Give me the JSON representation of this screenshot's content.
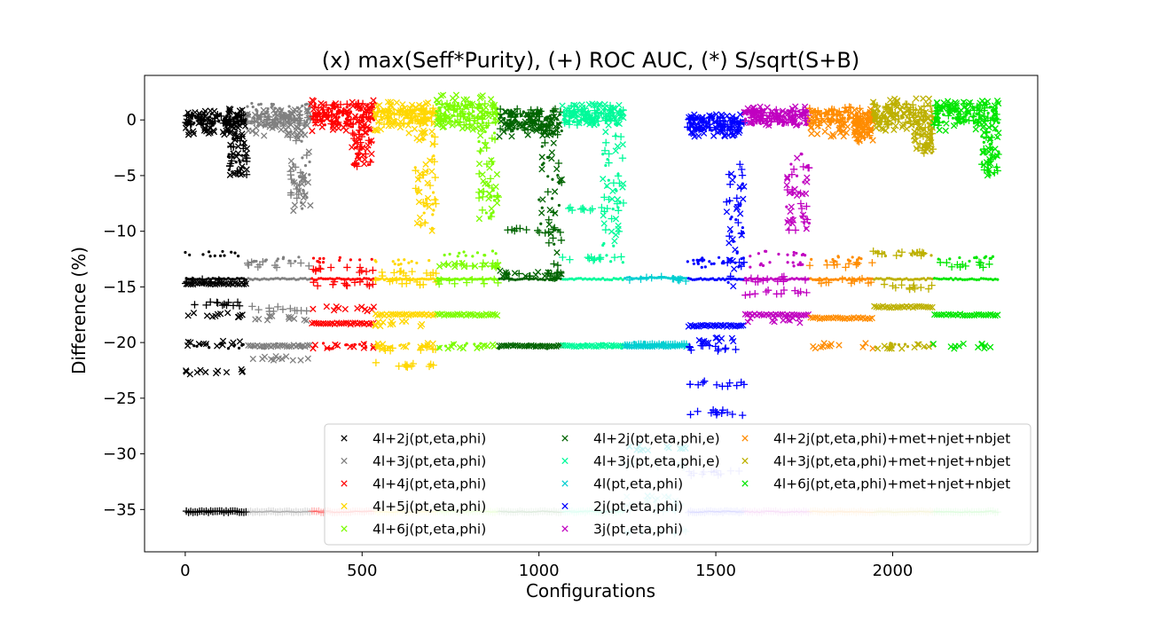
{
  "chart_data": {
    "type": "scatter",
    "title": "(x) max(Seff*Purity), (+) ROC AUC, (*) S/sqrt(S+B)",
    "xlabel": "Configurations",
    "ylabel": "Difference (%)",
    "xlim": [
      -115,
      2410
    ],
    "ylim": [
      -38.8,
      4.0
    ],
    "xticks": [
      0,
      500,
      1000,
      1500,
      2000
    ],
    "yticks": [
      0,
      -5,
      -10,
      -15,
      -20,
      -25,
      -30,
      -35
    ],
    "grid": false,
    "legend_placement": "lower-right",
    "markers": {
      "x": "max(Seff*Purity)",
      "+": "ROC AUC",
      "*": "S/sqrt(S+B)"
    },
    "series": [
      {
        "name": "4l+2j(pt,eta,phi)",
        "color": "#000000",
        "x_range": [
          0,
          175
        ],
        "cross_main": [
          -1.5,
          1.0
        ],
        "plus_main": [
          -0.5,
          0.5
        ],
        "dot_main": [
          -0.5,
          0.6
        ],
        "tail": {
          "x_range": [
            120,
            175
          ],
          "range": [
            -5.2,
            -1.0
          ]
        },
        "cross_levels": [
          -14.7,
          -17.5,
          -20.1,
          -22.6
        ],
        "plus_levels": [
          -35.2,
          -16.5,
          -14.5
        ],
        "dot_levels": [
          -14.3,
          -20.3,
          -12.0
        ]
      },
      {
        "name": "4l+3j(pt,eta,phi)",
        "color": "#808080",
        "x_range": [
          175,
          355
        ],
        "cross_main": [
          -1.5,
          1.0
        ],
        "plus_main": [
          -0.5,
          0.5
        ],
        "dot_main": [
          -0.5,
          1.5
        ],
        "tail": {
          "x_range": [
            295,
            355
          ],
          "range": [
            -8.2,
            -1.0
          ]
        },
        "cross_levels": [
          -20.3,
          -17.8,
          -21.4
        ],
        "plus_levels": [
          -35.2,
          -13.0,
          -17.0
        ],
        "dot_levels": [
          -14.3,
          -20.3,
          -12.5
        ]
      },
      {
        "name": "4l+4j(pt,eta,phi)",
        "color": "#ff0000",
        "x_range": [
          355,
          535
        ],
        "cross_main": [
          -1.0,
          1.8
        ],
        "plus_main": [
          -0.6,
          1.5
        ],
        "dot_main": [
          -0.5,
          1.5
        ],
        "tail": {
          "x_range": [
            470,
            530
          ],
          "range": [
            -4.2,
            -0.5
          ]
        },
        "cross_levels": [
          -18.3,
          -20.3,
          -17.0
        ],
        "plus_levels": [
          -35.2,
          -14.7,
          -13.5
        ],
        "dot_levels": [
          -14.3,
          -20.3,
          -12.6
        ]
      },
      {
        "name": "4l+5j(pt,eta,phi)",
        "color": "#ffd700",
        "x_range": [
          535,
          710
        ],
        "cross_main": [
          -1.2,
          1.7
        ],
        "plus_main": [
          -0.5,
          1.2
        ],
        "dot_main": [
          -0.3,
          1.0
        ],
        "tail": {
          "x_range": [
            650,
            710
          ],
          "range": [
            -10.0,
            -1.0
          ]
        },
        "cross_levels": [
          -17.5,
          -20.3,
          -18.3
        ],
        "plus_levels": [
          -35.2,
          -13.8,
          -14.6,
          -20.5,
          -22.0
        ],
        "dot_levels": [
          -14.3,
          -20.3,
          -12.8
        ]
      },
      {
        "name": "4l+6j(pt,eta,phi)",
        "color": "#7cfc00",
        "x_range": [
          710,
          885
        ],
        "cross_main": [
          -1.0,
          2.3
        ],
        "plus_main": [
          -0.5,
          1.5
        ],
        "dot_main": [
          -0.3,
          1.5
        ],
        "tail": {
          "x_range": [
            830,
            885
          ],
          "range": [
            -9.0,
            -0.5
          ]
        },
        "cross_levels": [
          -17.5,
          -20.3,
          -13.0
        ],
        "plus_levels": [
          -35.2,
          -14.5,
          -13.0
        ],
        "dot_levels": [
          -14.3,
          -20.3,
          -12.0
        ]
      },
      {
        "name": "4l+2j(pt,eta,phi,e)",
        "color": "#006400",
        "x_range": [
          885,
          1065
        ],
        "cross_main": [
          -1.5,
          0.8
        ],
        "plus_main": [
          -1.0,
          1.0
        ],
        "dot_main": [
          -1.0,
          0.8
        ],
        "tail": {
          "x_range": [
            1000,
            1065
          ],
          "range": [
            -14.2,
            -1.0
          ]
        },
        "cross_levels": [
          -20.3,
          -13.8
        ],
        "plus_levels": [
          -35.2,
          -14.0,
          -10.0
        ],
        "dot_levels": [
          -14.3,
          -20.3
        ]
      },
      {
        "name": "4l+3j(pt,eta,phi,e)",
        "color": "#00fa9a",
        "x_range": [
          1065,
          1240
        ],
        "cross_main": [
          -0.5,
          1.5
        ],
        "plus_main": [
          -0.5,
          1.3
        ],
        "dot_main": [
          -0.5,
          1.0
        ],
        "tail": {
          "x_range": [
            1180,
            1240
          ],
          "range": [
            -13.0,
            -1.0
          ]
        },
        "cross_levels": [
          -20.3
        ],
        "plus_levels": [
          -35.2,
          -12.5,
          -8.0
        ],
        "dot_levels": [
          -14.3,
          -20.3
        ]
      },
      {
        "name": "4l(pt,eta,phi)",
        "color": "#00ced1",
        "x_range": [
          1240,
          1420
        ],
        "cross_main": null,
        "plus_main": null,
        "dot_main": null,
        "tail": null,
        "cross_levels": [
          -20.3,
          -29.5,
          -34.0
        ],
        "plus_levels": [
          -20.2,
          -14.3,
          -31.0,
          -35.0,
          -37.0
        ],
        "dot_levels": [
          -14.2,
          -20.2,
          -34.5
        ]
      },
      {
        "name": "2j(pt,eta,phi)",
        "color": "#0000ff",
        "x_range": [
          1420,
          1580
        ],
        "cross_main": [
          -1.5,
          0.5
        ],
        "plus_main": [
          -1.0,
          0.3
        ],
        "dot_main": [
          -1.0,
          0.3
        ],
        "tail": {
          "x_range": [
            1530,
            1580
          ],
          "range": [
            -15.0,
            -3.5
          ]
        },
        "cross_levels": [
          -18.5,
          -19.8
        ],
        "plus_levels": [
          -35.2,
          -20.5,
          -23.7,
          -26.3,
          -31.7
        ],
        "dot_levels": [
          -14.3,
          -13.0,
          -12.5
        ]
      },
      {
        "name": "3j(pt,eta,phi)",
        "color": "#c000c0",
        "x_range": [
          1580,
          1765
        ],
        "cross_main": [
          -0.5,
          1.2
        ],
        "plus_main": [
          -0.3,
          1.0
        ],
        "dot_main": [
          -0.5,
          1.0
        ],
        "tail": {
          "x_range": [
            1700,
            1765
          ],
          "range": [
            -10.0,
            -2.5
          ]
        },
        "cross_levels": [
          -17.5,
          -18.0
        ],
        "plus_levels": [
          -35.2,
          -14.3,
          -15.5
        ],
        "dot_levels": [
          -14.3,
          -13.0,
          -12.0
        ]
      },
      {
        "name": "4l+2j(pt,eta,phi)+met+njet+nbjet",
        "color": "#ff8c00",
        "x_range": [
          1765,
          1945
        ],
        "cross_main": [
          -1.5,
          1.0
        ],
        "plus_main": [
          -0.5,
          1.2
        ],
        "dot_main": [
          -0.3,
          0.8
        ],
        "tail": {
          "x_range": [
            1890,
            1945
          ],
          "range": [
            -2.0,
            0.5
          ]
        },
        "cross_levels": [
          -17.8,
          -20.3
        ],
        "plus_levels": [
          -35.2,
          -13.0,
          -14.5
        ],
        "dot_levels": [
          -14.3,
          -12.5
        ]
      },
      {
        "name": "4l+3j(pt,eta,phi)+met+njet+nbjet",
        "color": "#bdb000",
        "x_range": [
          1945,
          2115
        ],
        "cross_main": [
          -1.0,
          2.0
        ],
        "plus_main": [
          -0.5,
          1.5
        ],
        "dot_main": [
          -0.3,
          1.0
        ],
        "tail": {
          "x_range": [
            2060,
            2115
          ],
          "range": [
            -3.0,
            -0.5
          ]
        },
        "cross_levels": [
          -16.8,
          -20.3
        ],
        "plus_levels": [
          -35.2,
          -12.0,
          -15.0
        ],
        "dot_levels": [
          -14.3,
          -20.3,
          -12.0
        ]
      },
      {
        "name": "4l+6j(pt,eta,phi)+met+njet+nbjet",
        "color": "#00e600",
        "x_range": [
          2115,
          2300
        ],
        "cross_main": [
          -1.0,
          1.8
        ],
        "plus_main": [
          -0.5,
          1.5
        ],
        "dot_main": [
          -0.3,
          1.2
        ],
        "tail": {
          "x_range": [
            2250,
            2300
          ],
          "range": [
            -5.0,
            -0.5
          ]
        },
        "cross_levels": [
          -17.5,
          -20.3
        ],
        "plus_levels": [
          -35.2,
          -13.0
        ],
        "dot_levels": [
          -14.3,
          -12.5
        ]
      }
    ]
  }
}
